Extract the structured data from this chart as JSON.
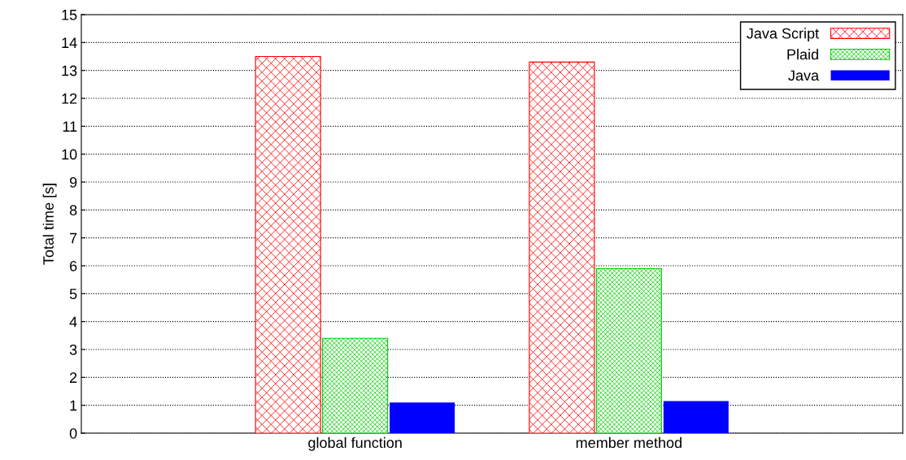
{
  "chart_data": {
    "type": "bar",
    "ylabel": "Total time [s]",
    "categories": [
      "global function",
      "member method"
    ],
    "series": [
      {
        "name": "Java Script",
        "color": "#ff0000",
        "values": [
          13.5,
          13.3
        ]
      },
      {
        "name": "Plaid",
        "color": "#00cc00",
        "values": [
          3.4,
          5.9
        ]
      },
      {
        "name": "Java",
        "color": "#0000ff",
        "values": [
          1.1,
          1.15
        ]
      }
    ],
    "ylim": [
      0,
      15
    ],
    "yticks": [
      0,
      1,
      2,
      3,
      4,
      5,
      6,
      7,
      8,
      9,
      10,
      11,
      12,
      13,
      14,
      15
    ],
    "grid": "y",
    "legend": "top right"
  }
}
